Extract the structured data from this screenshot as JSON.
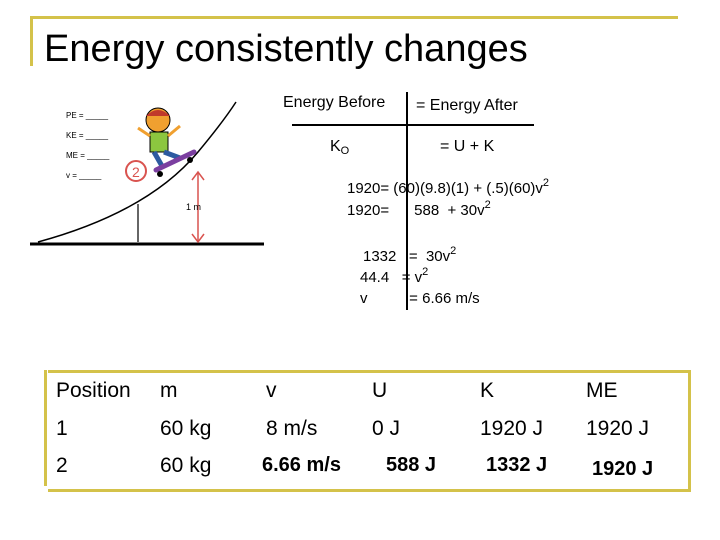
{
  "title": "Energy consistently changes",
  "diagram": {
    "labels": [
      "PE = _____",
      "KE = _____",
      "ME = _____",
      "v = _____"
    ],
    "position_marker": "2",
    "height_label": "1 m"
  },
  "equation": {
    "header_left": "Energy Before",
    "header_right": "= Energy After",
    "left_term": "K",
    "left_term_sub": "O",
    "right_term": "= U + K",
    "line1_a": "1920= (60)(9.8)(1) + (.5)(60)v",
    "line1_sup": "2",
    "line2_a": "1920=      588  + 30v",
    "line2_sup": "2",
    "line3_a": "1332   =  30v",
    "line3_sup": "2",
    "line4_a": "44.4   = v",
    "line4_sup": "2",
    "line5_a": "v          = 6.66 m/s"
  },
  "table": {
    "headers": [
      "Position",
      "m",
      "v",
      "U",
      "K",
      "ME"
    ],
    "rows": [
      [
        "1",
        "60 kg",
        "8 m/s",
        "0 J",
        "1920 J",
        "1920 J"
      ],
      [
        "2",
        "60 kg",
        "6.66 m/s",
        "588 J",
        "1332 J",
        "1920 J"
      ]
    ]
  }
}
